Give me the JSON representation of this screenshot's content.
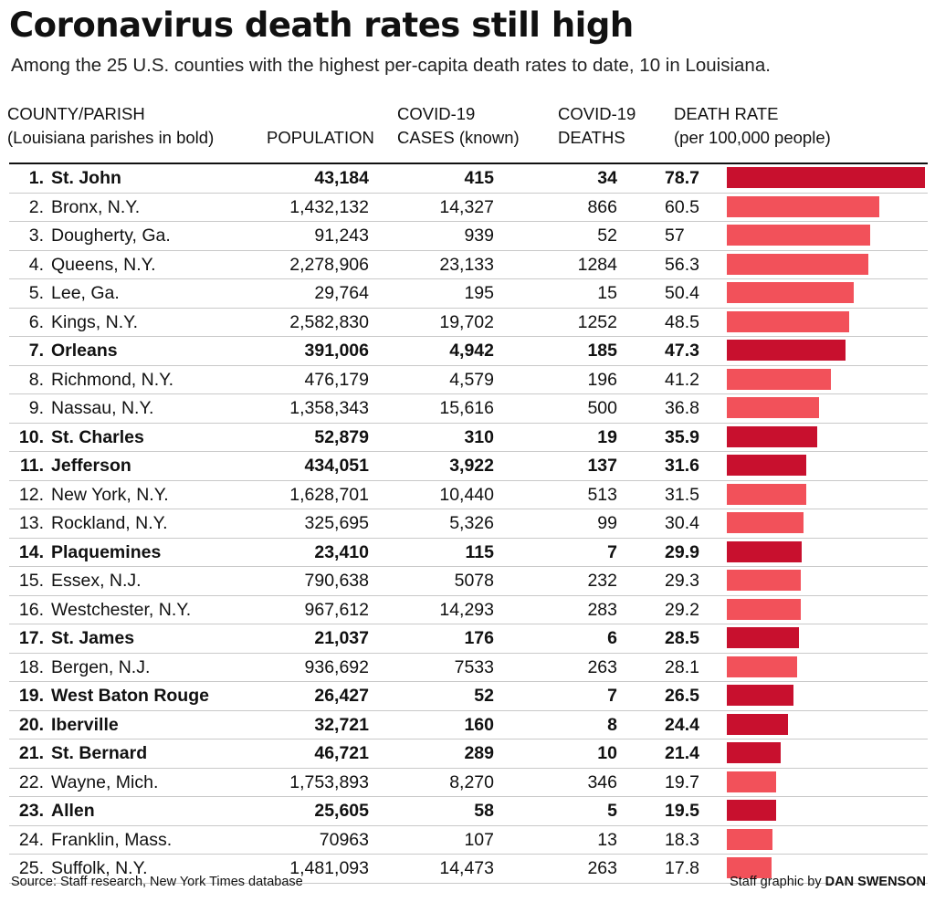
{
  "title": "Coronavirus death rates still high",
  "subtitle": "Among the 25 U.S. counties with the highest per-capita death rates to date, 10 in Louisiana.",
  "headers": {
    "county": "COUNTY/PARISH\n(Louisiana parishes in bold)",
    "population": "POPULATION",
    "cases": "COVID-19\nCASES (known)",
    "deaths": "COVID-19\nDEATHS",
    "rate": "DEATH RATE\n(per 100,000 people)"
  },
  "colors": {
    "louisiana_bar": "#c8102e",
    "other_bar": "#f2515a"
  },
  "footer": {
    "source": "Source: Staff research, New York Times database",
    "credit_prefix": "Staff graphic by ",
    "credit_name": "DAN SWENSON"
  },
  "chart_data": {
    "type": "table",
    "columns": [
      "COUNTY/PARISH",
      "POPULATION",
      "COVID-19 CASES (known)",
      "COVID-19 DEATHS",
      "DEATH RATE (per 100,000 people)"
    ],
    "rows": [
      {
        "rank": "1.",
        "name": "St. John",
        "population": "43,184",
        "cases": "415",
        "deaths": "34",
        "rate": 78.7,
        "rate_label": "78.7",
        "louisiana": true
      },
      {
        "rank": "2.",
        "name": "Bronx, N.Y.",
        "population": "1,432,132",
        "cases": "14,327",
        "deaths": "866",
        "rate": 60.5,
        "rate_label": "60.5",
        "louisiana": false
      },
      {
        "rank": "3.",
        "name": "Dougherty, Ga.",
        "population": "91,243",
        "cases": "939",
        "deaths": "52",
        "rate": 57,
        "rate_label": "57",
        "louisiana": false
      },
      {
        "rank": "4.",
        "name": "Queens, N.Y.",
        "population": "2,278,906",
        "cases": "23,133",
        "deaths": "1284",
        "rate": 56.3,
        "rate_label": "56.3",
        "louisiana": false
      },
      {
        "rank": "5.",
        "name": "Lee, Ga.",
        "population": "29,764",
        "cases": "195",
        "deaths": "15",
        "rate": 50.4,
        "rate_label": "50.4",
        "louisiana": false
      },
      {
        "rank": "6.",
        "name": "Kings, N.Y.",
        "population": "2,582,830",
        "cases": "19,702",
        "deaths": "1252",
        "rate": 48.5,
        "rate_label": "48.5",
        "louisiana": false
      },
      {
        "rank": "7.",
        "name": "Orleans",
        "population": "391,006",
        "cases": "4,942",
        "deaths": "185",
        "rate": 47.3,
        "rate_label": "47.3",
        "louisiana": true
      },
      {
        "rank": "8.",
        "name": "Richmond, N.Y.",
        "population": "476,179",
        "cases": "4,579",
        "deaths": "196",
        "rate": 41.2,
        "rate_label": "41.2",
        "louisiana": false
      },
      {
        "rank": "9.",
        "name": "Nassau, N.Y.",
        "population": "1,358,343",
        "cases": "15,616",
        "deaths": "500",
        "rate": 36.8,
        "rate_label": "36.8",
        "louisiana": false
      },
      {
        "rank": "10.",
        "name": "St. Charles",
        "population": "52,879",
        "cases": "310",
        "deaths": "19",
        "rate": 35.9,
        "rate_label": "35.9",
        "louisiana": true
      },
      {
        "rank": "11.",
        "name": "Jefferson",
        "population": "434,051",
        "cases": "3,922",
        "deaths": "137",
        "rate": 31.6,
        "rate_label": "31.6",
        "louisiana": true
      },
      {
        "rank": "12.",
        "name": "New York, N.Y.",
        "population": "1,628,701",
        "cases": "10,440",
        "deaths": "513",
        "rate": 31.5,
        "rate_label": "31.5",
        "louisiana": false
      },
      {
        "rank": "13.",
        "name": "Rockland, N.Y.",
        "population": "325,695",
        "cases": "5,326",
        "deaths": "99",
        "rate": 30.4,
        "rate_label": "30.4",
        "louisiana": false
      },
      {
        "rank": "14.",
        "name": "Plaquemines",
        "population": "23,410",
        "cases": "115",
        "deaths": "7",
        "rate": 29.9,
        "rate_label": "29.9",
        "louisiana": true
      },
      {
        "rank": "15.",
        "name": "Essex, N.J.",
        "population": "790,638",
        "cases": "5078",
        "deaths": "232",
        "rate": 29.3,
        "rate_label": "29.3",
        "louisiana": false
      },
      {
        "rank": "16.",
        "name": "Westchester, N.Y.",
        "population": "967,612",
        "cases": "14,293",
        "deaths": "283",
        "rate": 29.2,
        "rate_label": "29.2",
        "louisiana": false
      },
      {
        "rank": "17.",
        "name": "St. James",
        "population": "21,037",
        "cases": "176",
        "deaths": "6",
        "rate": 28.5,
        "rate_label": "28.5",
        "louisiana": true
      },
      {
        "rank": "18.",
        "name": "Bergen, N.J.",
        "population": "936,692",
        "cases": "7533",
        "deaths": "263",
        "rate": 28.1,
        "rate_label": "28.1",
        "louisiana": false
      },
      {
        "rank": "19.",
        "name": "West Baton Rouge",
        "population": "26,427",
        "cases": "52",
        "deaths": "7",
        "rate": 26.5,
        "rate_label": "26.5",
        "louisiana": true
      },
      {
        "rank": "20.",
        "name": "Iberville",
        "population": "32,721",
        "cases": "160",
        "deaths": "8",
        "rate": 24.4,
        "rate_label": "24.4",
        "louisiana": true
      },
      {
        "rank": "21.",
        "name": "St. Bernard",
        "population": "46,721",
        "cases": "289",
        "deaths": "10",
        "rate": 21.4,
        "rate_label": "21.4",
        "louisiana": true
      },
      {
        "rank": "22.",
        "name": "Wayne, Mich.",
        "population": "1,753,893",
        "cases": "8,270",
        "deaths": "346",
        "rate": 19.7,
        "rate_label": "19.7",
        "louisiana": false
      },
      {
        "rank": "23.",
        "name": "Allen",
        "population": "25,605",
        "cases": "58",
        "deaths": "5",
        "rate": 19.5,
        "rate_label": "19.5",
        "louisiana": true
      },
      {
        "rank": "24.",
        "name": "Franklin, Mass.",
        "population": "70963",
        "cases": "107",
        "deaths": "13",
        "rate": 18.3,
        "rate_label": "18.3",
        "louisiana": false
      },
      {
        "rank": "25.",
        "name": "Suffolk, N.Y.",
        "population": "1,481,093",
        "cases": "14,473",
        "deaths": "263",
        "rate": 17.8,
        "rate_label": "17.8",
        "louisiana": false
      }
    ],
    "bar_max": 78.7
  }
}
